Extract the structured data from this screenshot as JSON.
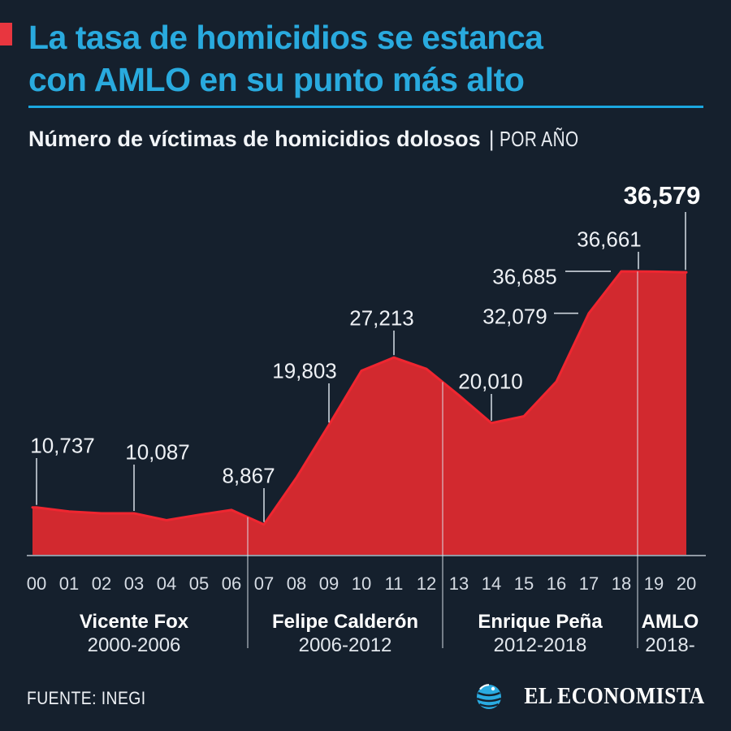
{
  "colors": {
    "background": "#15202d",
    "title_cyan": "#29aade",
    "accent_red": "#e8363f",
    "area_fill": "#d2292f",
    "area_stroke": "#ef2630",
    "line_gray": "#c5ccd5"
  },
  "header": {
    "title_line1": "La tasa de homicidios se estanca",
    "title_line2": "con AMLO en su punto más alto",
    "subtitle_bold": "Número de víctimas de homicidios dolosos",
    "subtitle_sep": "|",
    "subtitle_light": "POR AÑO"
  },
  "chart_data": {
    "type": "area",
    "title": "Número de víctimas de homicidios dolosos",
    "unit_label": "POR AÑO",
    "x": [
      2000,
      2001,
      2002,
      2003,
      2004,
      2005,
      2006,
      2007,
      2008,
      2009,
      2010,
      2011,
      2012,
      2013,
      2014,
      2015,
      2016,
      2017,
      2018,
      2019,
      2020
    ],
    "x_tick_labels": [
      "00",
      "01",
      "02",
      "03",
      "04",
      "05",
      "06",
      "07",
      "08",
      "09",
      "10",
      "11",
      "12",
      "13",
      "14",
      "15",
      "16",
      "17",
      "18",
      "19",
      "20"
    ],
    "series": [
      {
        "name": "Víctimas de homicidios dolosos",
        "values": [
          10737,
          10285,
          10088,
          10087,
          9330,
          9926,
          10452,
          8867,
          14006,
          19803,
          25757,
          27213,
          25967,
          23063,
          20010,
          20762,
          24559,
          32079,
          36685,
          36661,
          36579
        ]
      }
    ],
    "labeled_points": [
      {
        "year": 2000,
        "label": "10,737",
        "bold": false
      },
      {
        "year": 2003,
        "label": "10,087",
        "bold": false
      },
      {
        "year": 2007,
        "label": "8,867",
        "bold": false
      },
      {
        "year": 2009,
        "label": "19,803",
        "bold": false
      },
      {
        "year": 2011,
        "label": "27,213",
        "bold": false
      },
      {
        "year": 2014,
        "label": "20,010",
        "bold": false
      },
      {
        "year": 2017,
        "label": "32,079",
        "bold": false
      },
      {
        "year": 2018,
        "label": "36,685",
        "bold": false
      },
      {
        "year": 2019,
        "label": "36,661",
        "bold": false
      },
      {
        "year": 2020,
        "label": "36,579",
        "bold": true
      }
    ],
    "presidents": [
      {
        "name": "Vicente Fox",
        "term": "2000-2006",
        "span_start": 2000,
        "span_end": 2006
      },
      {
        "name": "Felipe Calderón",
        "term": "2006-2012",
        "span_start": 2007,
        "span_end": 2012
      },
      {
        "name": "Enrique Peña",
        "term": "2012-2018",
        "span_start": 2013,
        "span_end": 2018
      },
      {
        "name": "AMLO",
        "term": "2018-",
        "span_start": 2019,
        "span_end": 2020
      }
    ],
    "ylim": [
      0,
      40000
    ],
    "grid": false,
    "legend": "none"
  },
  "footer": {
    "source": "FUENTE: INEGI",
    "brand": "EL ECONOMISTA"
  }
}
